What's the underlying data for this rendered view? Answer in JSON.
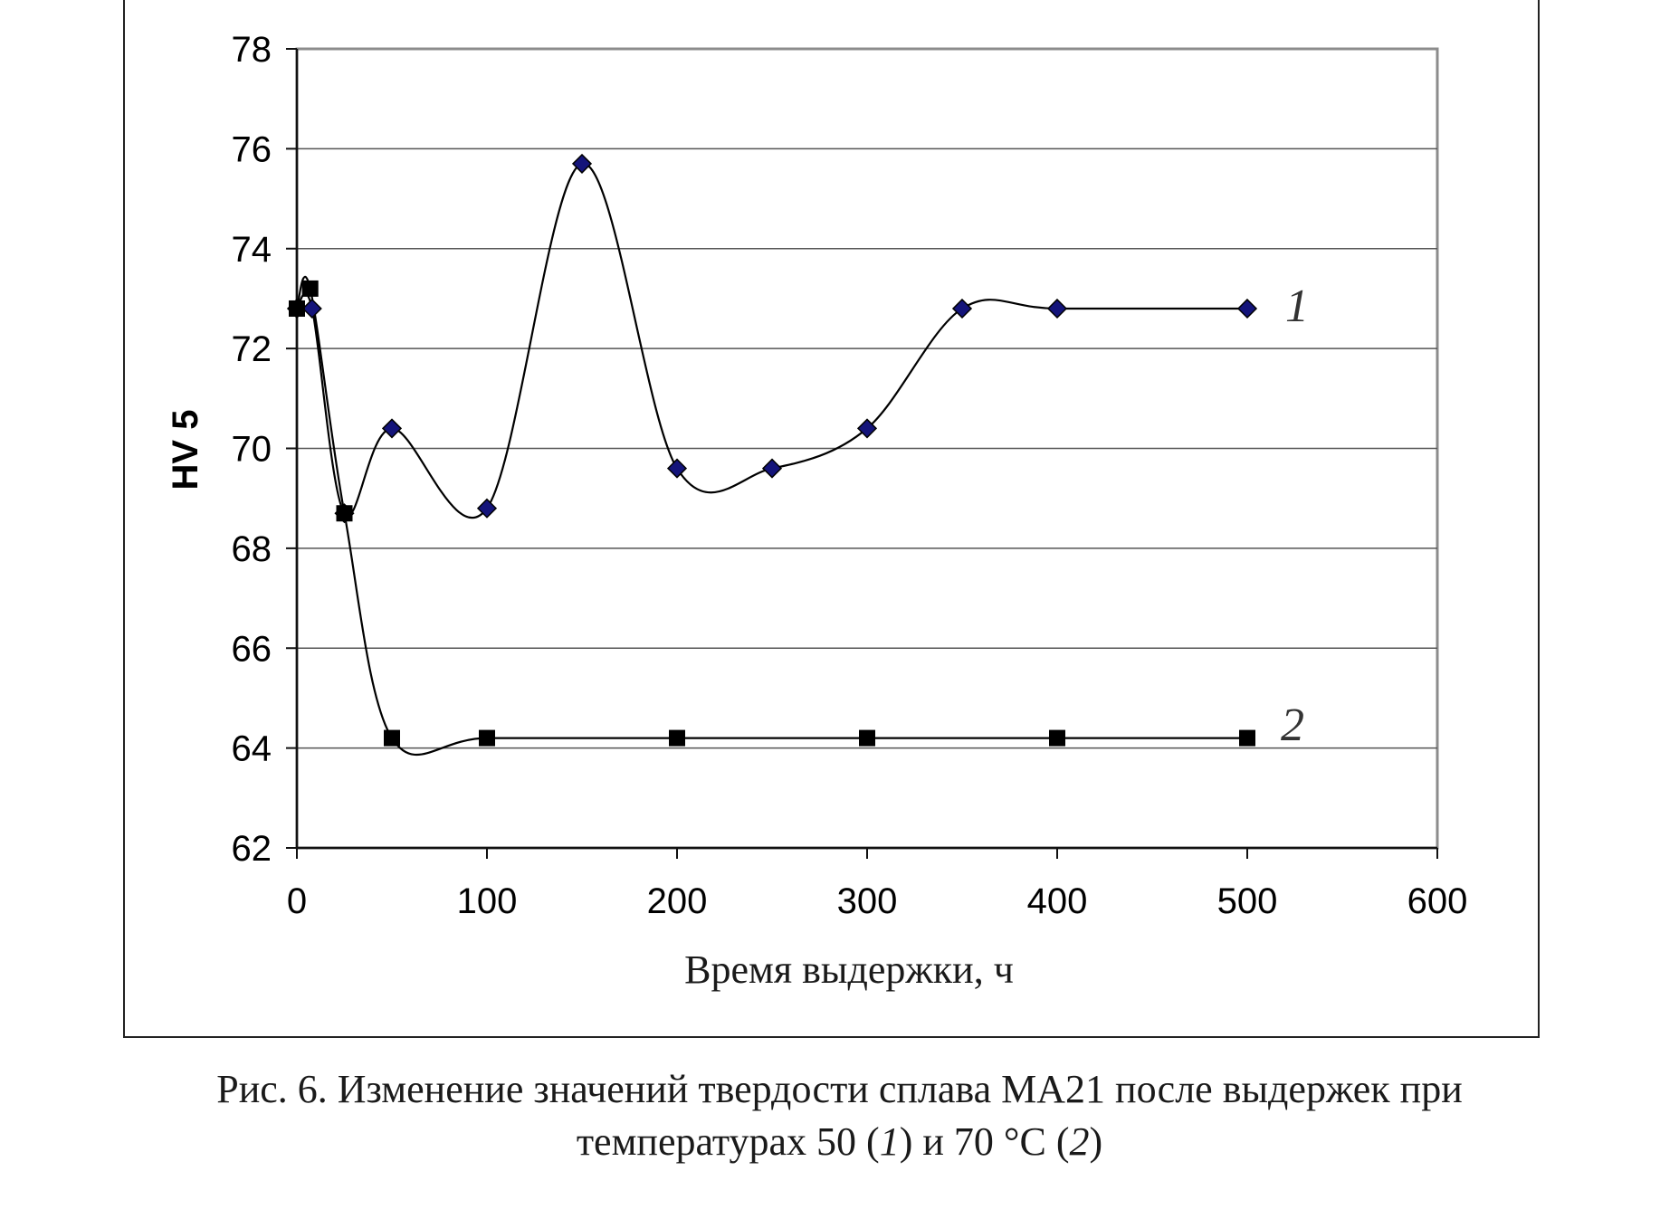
{
  "chart_data": {
    "type": "line",
    "xlabel": "Время выдержки, ч",
    "ylabel": "HV 5",
    "xlim": [
      0,
      600
    ],
    "ylim": [
      62,
      78
    ],
    "x_ticks": [
      0,
      100,
      200,
      300,
      400,
      500,
      600
    ],
    "y_ticks": [
      62,
      64,
      66,
      68,
      70,
      72,
      74,
      76,
      78
    ],
    "grid": "horizontal",
    "smoothed": true,
    "series": [
      {
        "name": "1",
        "marker": "diamond",
        "marker_color": "#14147a",
        "points": [
          [
            0,
            72.8
          ],
          [
            8,
            72.8
          ],
          [
            25,
            68.7
          ],
          [
            50,
            70.4
          ],
          [
            100,
            68.8
          ],
          [
            150,
            75.7
          ],
          [
            200,
            69.6
          ],
          [
            250,
            69.6
          ],
          [
            300,
            70.4
          ],
          [
            350,
            72.8
          ],
          [
            400,
            72.8
          ],
          [
            500,
            72.8
          ]
        ]
      },
      {
        "name": "2",
        "marker": "square",
        "marker_color": "#000000",
        "points": [
          [
            0,
            72.8
          ],
          [
            7,
            73.2
          ],
          [
            25,
            68.7
          ],
          [
            50,
            64.2
          ],
          [
            100,
            64.2
          ],
          [
            200,
            64.2
          ],
          [
            300,
            64.2
          ],
          [
            400,
            64.2
          ],
          [
            500,
            64.2
          ]
        ]
      }
    ]
  },
  "caption": {
    "line1": "Рис. 6. Изменение значений твердости сплава МА21 после выдержек при",
    "line2_pre": "температурах 50 (",
    "line2_num1": "1",
    "line2_mid": ") и 70 °С (",
    "line2_num2": "2",
    "line2_post": ")"
  }
}
